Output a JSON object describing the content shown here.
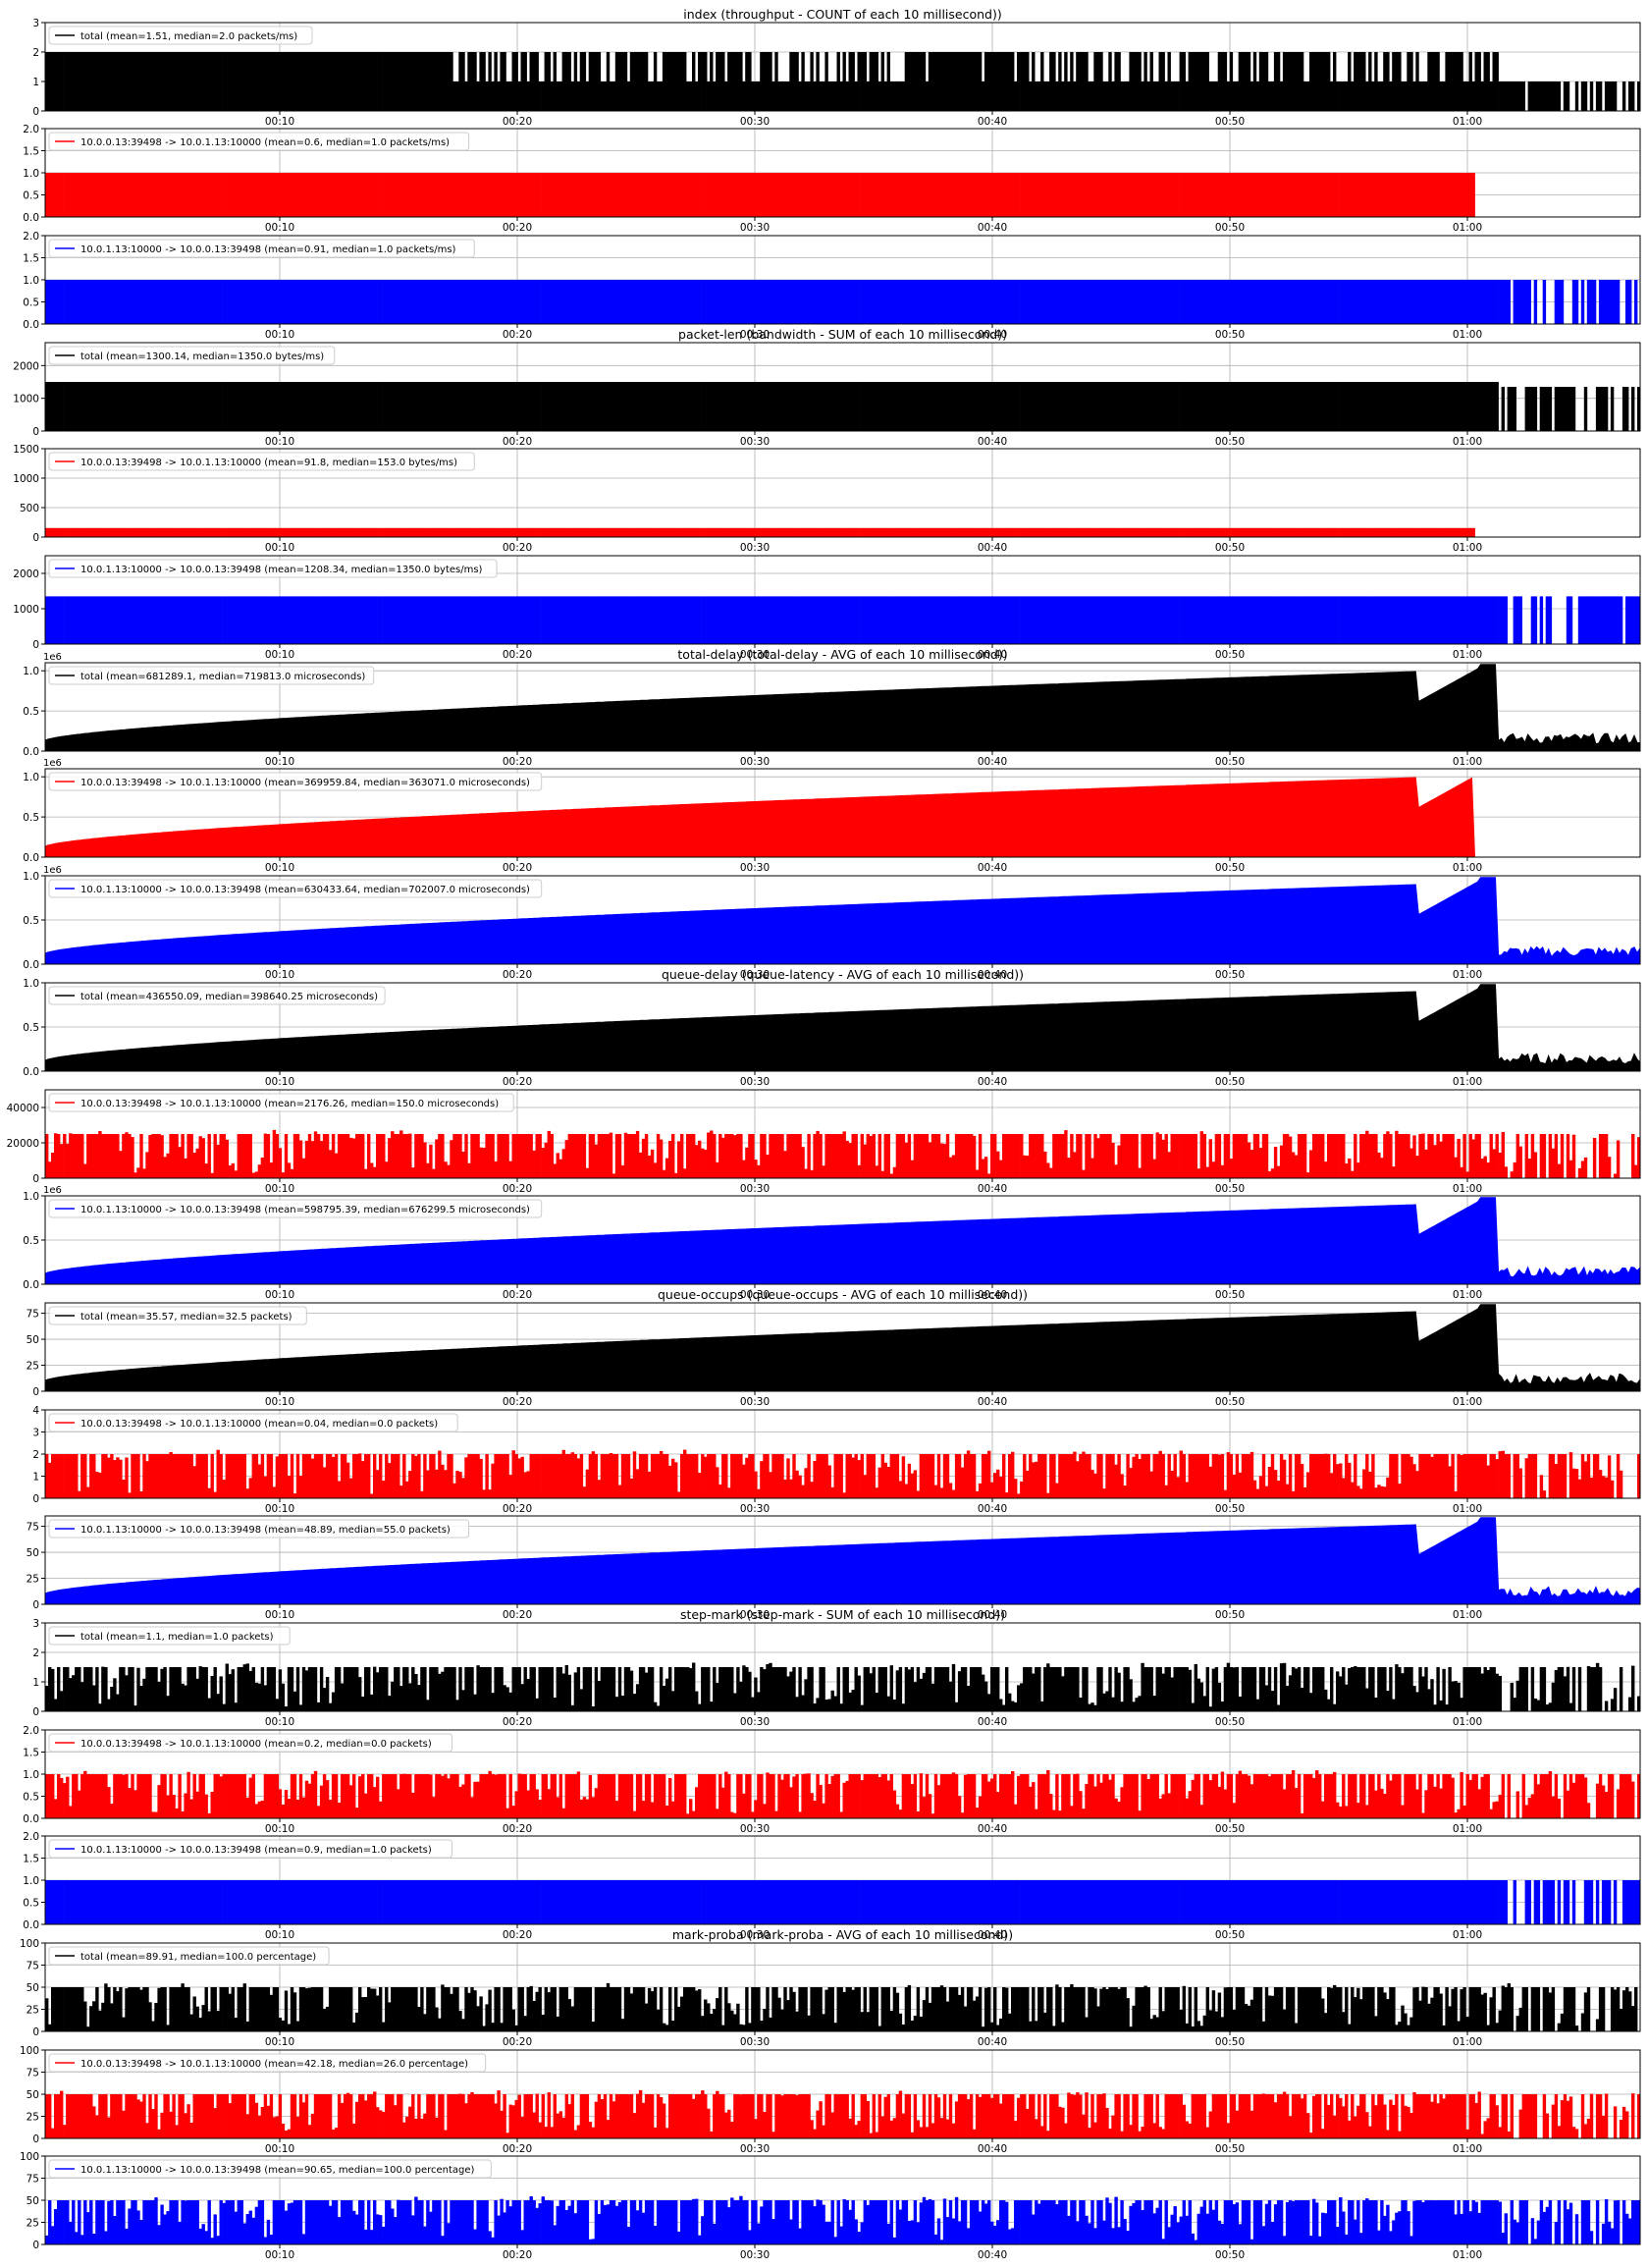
{
  "x_tick_labels": [
    "00:10",
    "00:20",
    "00:30",
    "00:40",
    "00:50",
    "01:00"
  ],
  "colors": {
    "total": "#000000",
    "flow_a": "#ff0000",
    "flow_b": "#0000ff",
    "grid": "#b0b0b0"
  },
  "chart_data": [
    {
      "type": "bar",
      "group": "index",
      "title": "index (throughput - COUNT of each 10 millisecond))",
      "legend": "total (mean=1.51, median=2.0 packets/ms)",
      "color": "#000000",
      "ylim": [
        0,
        3
      ],
      "yticks": [
        "0",
        "1",
        "2",
        "3"
      ],
      "sci": "",
      "sparse_start": 0.25,
      "base": 2,
      "tail": 1,
      "grid": true
    },
    {
      "type": "bar",
      "group": "index",
      "title": "",
      "legend": "10.0.0.13:39498 -> 10.0.1.13:10000 (mean=0.6, median=1.0 packets/ms)",
      "color": "#ff0000",
      "ylim": [
        0,
        2
      ],
      "yticks": [
        "0.0",
        "0.5",
        "1.0",
        "1.5",
        "2.0"
      ],
      "sci": "",
      "base": 1,
      "tail": 0,
      "end": 0.895,
      "grid": true
    },
    {
      "type": "bar",
      "group": "index",
      "title": "",
      "legend": "10.0.1.13:10000 -> 10.0.0.13:39498 (mean=0.91, median=1.0 packets/ms)",
      "color": "#0000ff",
      "ylim": [
        0,
        2
      ],
      "yticks": [
        "0.0",
        "0.5",
        "1.0",
        "1.5",
        "2.0"
      ],
      "sci": "",
      "base": 1,
      "tail": 1,
      "grid": true
    },
    {
      "type": "bar",
      "group": "packet-len",
      "title": "packet-len (bandwidth - SUM of each 10 millisecond))",
      "legend": "total (mean=1300.14, median=1350.0 bytes/ms)",
      "color": "#000000",
      "ylim": [
        0,
        2700
      ],
      "yticks": [
        "0",
        "1000",
        "2000"
      ],
      "ytickvals": [
        0,
        1000,
        2000
      ],
      "sci": "",
      "base": 1500,
      "tail": 1350,
      "grid": true
    },
    {
      "type": "bar",
      "group": "packet-len",
      "title": "",
      "legend": "10.0.0.13:39498 -> 10.0.1.13:10000 (mean=91.8, median=153.0 bytes/ms)",
      "color": "#ff0000",
      "ylim": [
        0,
        1500
      ],
      "yticks": [
        "0",
        "500",
        "1000",
        "1500"
      ],
      "ytickvals": [
        0,
        500,
        1000,
        1500
      ],
      "sci": "",
      "base": 153,
      "tail": 0,
      "end": 0.895,
      "grid": true
    },
    {
      "type": "bar",
      "group": "packet-len",
      "title": "",
      "legend": "10.0.1.13:10000 -> 10.0.0.13:39498 (mean=1208.34, median=1350.0 bytes/ms)",
      "color": "#0000ff",
      "ylim": [
        0,
        2500
      ],
      "yticks": [
        "0",
        "1000",
        "2000"
      ],
      "ytickvals": [
        0,
        1000,
        2000
      ],
      "sci": "",
      "base": 1350,
      "tail": 1350,
      "grid": true
    },
    {
      "type": "area",
      "group": "total-delay",
      "title": "total-delay (total-delay - AVG of each 10 millisecond))",
      "legend": "total (mean=681289.1, median=719813.0 microseconds)",
      "color": "#000000",
      "ylim": [
        0,
        1.1
      ],
      "yticks": [
        "0.0",
        "0.5",
        "1.0"
      ],
      "sci": "1e6",
      "grid": true
    },
    {
      "type": "area",
      "group": "total-delay",
      "title": "",
      "legend": "10.0.0.13:39498 -> 10.0.1.13:10000 (mean=369959.84, median=363071.0 microseconds)",
      "color": "#ff0000",
      "ylim": [
        0,
        1.1
      ],
      "yticks": [
        "0.0",
        "0.5",
        "1.0"
      ],
      "sci": "1e6",
      "grid": true
    },
    {
      "type": "area",
      "group": "total-delay",
      "title": "",
      "legend": "10.0.1.13:10000 -> 10.0.0.13:39498 (mean=630433.64, median=702007.0 microseconds)",
      "color": "#0000ff",
      "ylim": [
        0,
        1.0
      ],
      "yticks": [
        "0.0",
        "0.5",
        "1.0"
      ],
      "sci": "1e6",
      "grid": true
    },
    {
      "type": "area",
      "group": "queue-delay",
      "title": "queue-delay (queue-latency - AVG of each 10 millisecond))",
      "legend": "total (mean=436550.09, median=398640.25 microseconds)",
      "color": "#000000",
      "ylim": [
        0,
        1.0
      ],
      "yticks": [
        "0.0",
        "0.5",
        "1.0"
      ],
      "sci": "",
      "grid": true
    },
    {
      "type": "bar",
      "group": "queue-delay",
      "title": "",
      "legend": "10.0.0.13:39498 -> 10.0.1.13:10000 (mean=2176.26, median=150.0 microseconds)",
      "color": "#ff0000",
      "ylim": [
        0,
        50000
      ],
      "yticks": [
        "0",
        "20000",
        "40000"
      ],
      "ytickvals": [
        0,
        20000,
        40000
      ],
      "sci": "",
      "grid": true
    },
    {
      "type": "area",
      "group": "queue-delay",
      "title": "",
      "legend": "10.0.1.13:10000 -> 10.0.0.13:39498 (mean=598795.39, median=676299.5 microseconds)",
      "color": "#0000ff",
      "ylim": [
        0,
        1.0
      ],
      "yticks": [
        "0.0",
        "0.5",
        "1.0"
      ],
      "sci": "1e6",
      "grid": true
    },
    {
      "type": "area",
      "group": "queue-occups",
      "title": "queue-occups (queue-occups - AVG of each 10 millisecond))",
      "legend": "total (mean=35.57, median=32.5 packets)",
      "color": "#000000",
      "ylim": [
        0,
        85
      ],
      "yticks": [
        "0",
        "25",
        "50",
        "75"
      ],
      "ytickvals": [
        0,
        25,
        50,
        75
      ],
      "sci": "",
      "grid": true
    },
    {
      "type": "bar",
      "group": "queue-occups",
      "title": "",
      "legend": "10.0.0.13:39498 -> 10.0.1.13:10000 (mean=0.04, median=0.0 packets)",
      "color": "#ff0000",
      "ylim": [
        0,
        4
      ],
      "yticks": [
        "0",
        "1",
        "2",
        "3",
        "4"
      ],
      "sci": "",
      "grid": true
    },
    {
      "type": "area",
      "group": "queue-occups",
      "title": "",
      "legend": "10.0.1.13:10000 -> 10.0.0.13:39498 (mean=48.89, median=55.0 packets)",
      "color": "#0000ff",
      "ylim": [
        0,
        85
      ],
      "yticks": [
        "0",
        "25",
        "50",
        "75"
      ],
      "ytickvals": [
        0,
        25,
        50,
        75
      ],
      "sci": "",
      "grid": true
    },
    {
      "type": "bar",
      "group": "step-mark",
      "title": "step-mark (step-mark - SUM of each 10 millisecond))",
      "legend": "total (mean=1.1, median=1.0 packets)",
      "color": "#000000",
      "ylim": [
        0,
        3
      ],
      "yticks": [
        "0",
        "1",
        "2",
        "3"
      ],
      "sci": "",
      "grid": true
    },
    {
      "type": "bar",
      "group": "step-mark",
      "title": "",
      "legend": "10.0.0.13:39498 -> 10.0.1.13:10000 (mean=0.2, median=0.0 packets)",
      "color": "#ff0000",
      "ylim": [
        0,
        2
      ],
      "yticks": [
        "0.0",
        "0.5",
        "1.0",
        "1.5",
        "2.0"
      ],
      "sci": "",
      "grid": true
    },
    {
      "type": "bar",
      "group": "step-mark",
      "title": "",
      "legend": "10.0.1.13:10000 -> 10.0.0.13:39498 (mean=0.9, median=1.0 packets)",
      "color": "#0000ff",
      "ylim": [
        0,
        2
      ],
      "yticks": [
        "0.0",
        "0.5",
        "1.0",
        "1.5",
        "2.0"
      ],
      "sci": "",
      "base": 1,
      "tail": 1,
      "grid": true
    },
    {
      "type": "bar",
      "group": "mark-proba",
      "title": "mark-proba (mark-proba - AVG of each 10 millisecond))",
      "legend": "total (mean=89.91, median=100.0 percentage)",
      "color": "#000000",
      "ylim": [
        0,
        100
      ],
      "yticks": [
        "0",
        "25",
        "50",
        "75",
        "100"
      ],
      "ytickvals": [
        0,
        25,
        50,
        75,
        100
      ],
      "sci": "",
      "grid": true
    },
    {
      "type": "bar",
      "group": "mark-proba",
      "title": "",
      "legend": "10.0.0.13:39498 -> 10.0.1.13:10000 (mean=42.18, median=26.0 percentage)",
      "color": "#ff0000",
      "ylim": [
        0,
        100
      ],
      "yticks": [
        "0",
        "25",
        "50",
        "75",
        "100"
      ],
      "ytickvals": [
        0,
        25,
        50,
        75,
        100
      ],
      "sci": "",
      "grid": true
    },
    {
      "type": "bar",
      "group": "mark-proba",
      "title": "",
      "legend": "10.0.1.13:10000 -> 10.0.0.13:39498 (mean=90.65, median=100.0 percentage)",
      "color": "#0000ff",
      "ylim": [
        0,
        100
      ],
      "yticks": [
        "0",
        "25",
        "50",
        "75",
        "100"
      ],
      "ytickvals": [
        0,
        25,
        50,
        75,
        100
      ],
      "sci": "",
      "grid": true
    }
  ]
}
